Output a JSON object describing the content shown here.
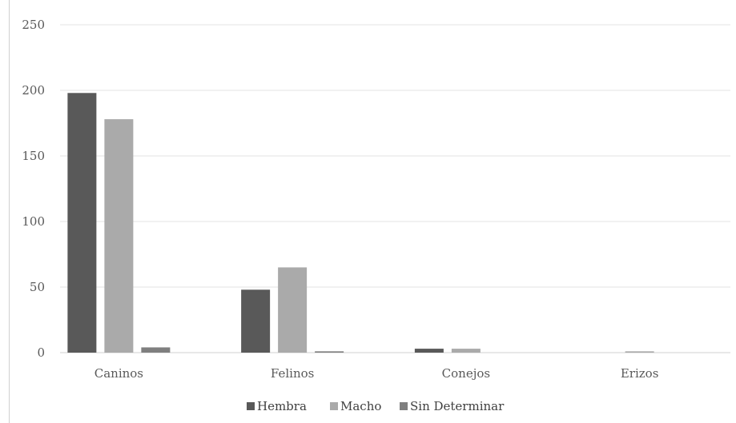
{
  "chart_data": {
    "type": "bar",
    "title": "",
    "xlabel": "",
    "ylabel": "",
    "ylim": [
      0,
      250
    ],
    "yticks": [
      0,
      50,
      100,
      150,
      200,
      250
    ],
    "grid": true,
    "legend_position": "bottom",
    "categories": [
      "Caninos",
      "Felinos",
      "Conejos",
      "Erizos"
    ],
    "series": [
      {
        "name": "Hembra",
        "color": "#595959",
        "values": [
          198,
          48,
          3,
          0
        ]
      },
      {
        "name": "Macho",
        "color": "#aaaaaa",
        "values": [
          178,
          65,
          3,
          1
        ]
      },
      {
        "name": "Sin Determinar",
        "color": "#7f7f7f",
        "values": [
          4,
          1,
          0,
          0
        ]
      }
    ]
  }
}
